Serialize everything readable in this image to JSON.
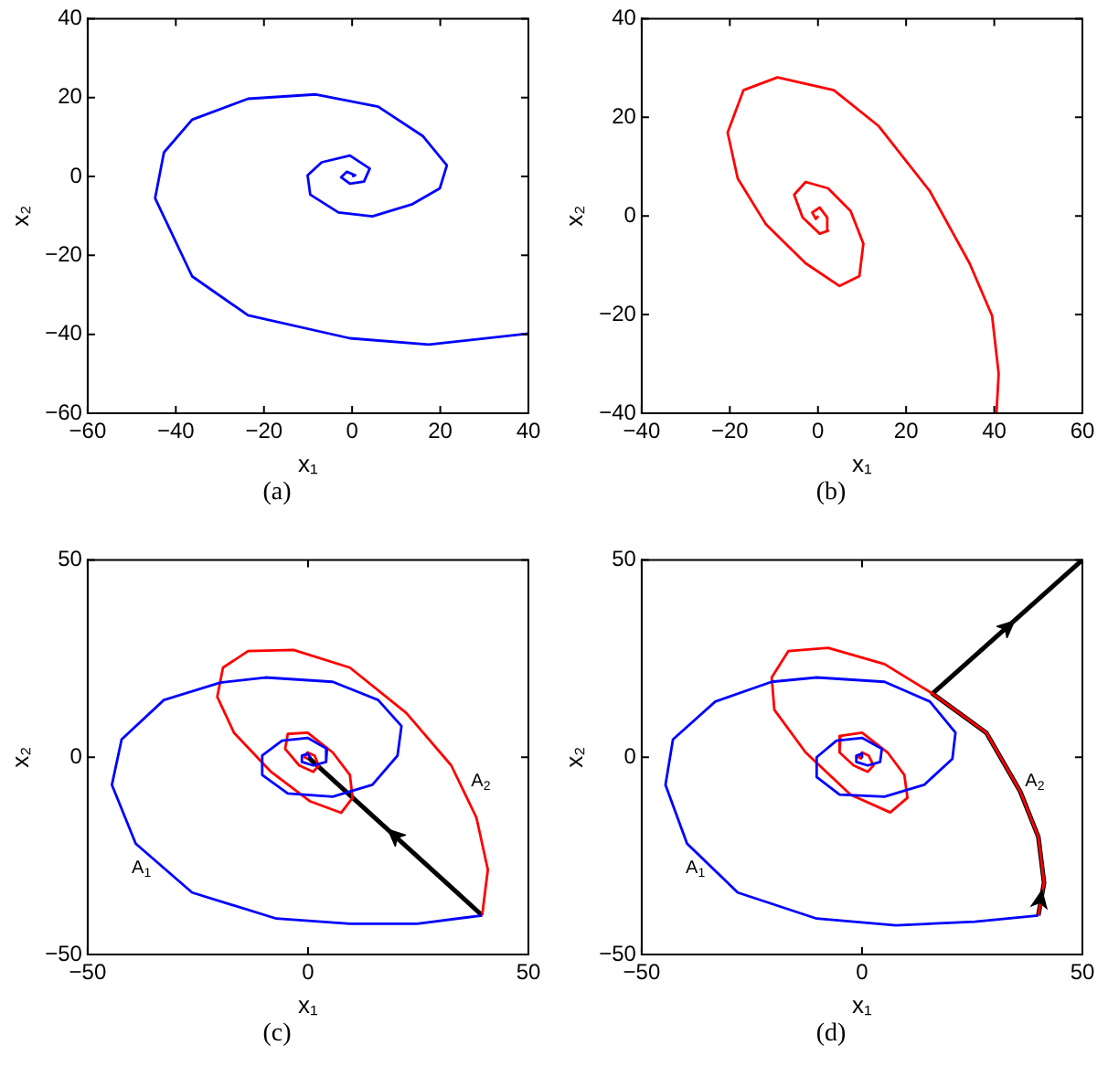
{
  "chart_data": [
    {
      "type": "line",
      "xlabel": "x₁",
      "ylabel": "x₂",
      "xlim": [
        -60,
        40
      ],
      "ylim": [
        -60,
        40
      ],
      "xticks": [
        -60,
        -40,
        -20,
        0,
        20,
        40
      ],
      "yticks": [
        -60,
        -40,
        -20,
        0,
        20,
        40
      ],
      "grid": false,
      "legend": false,
      "marker": "none",
      "annotations": [
        "(a)"
      ],
      "series": [
        {
          "color": "#0000ff",
          "x": [
            40,
            17.4,
            -0.5,
            -23.6,
            -36.3,
            -44.7,
            -42.7,
            -36.3,
            -23.6,
            -8.2,
            5.9,
            16.1,
            21.5,
            19.9,
            13.5,
            4.6,
            -3.1,
            -9.5,
            -10.1,
            -6.9,
            -0.5,
            4.0,
            2.7,
            -0.5,
            -2.5,
            -1.2,
            0.7,
            0
          ],
          "values": [
            -39.8,
            -42.6,
            -41,
            -35.2,
            -25.3,
            -5.5,
            6.1,
            14.4,
            19.7,
            20.8,
            17.7,
            10.2,
            2.8,
            -3.0,
            -7.1,
            -10.1,
            -9.1,
            -4.6,
            0.3,
            3.6,
            5.3,
            2.0,
            -1.3,
            -1.8,
            -0.2,
            1.2,
            0.3,
            0
          ]
        }
      ]
    },
    {
      "type": "line",
      "xlabel": "x₁",
      "ylabel": "x₂",
      "xlim": [
        -40,
        60
      ],
      "ylim": [
        -40,
        40
      ],
      "xticks": [
        -40,
        -20,
        0,
        20,
        40,
        60
      ],
      "yticks": [
        -40,
        -20,
        0,
        20,
        40
      ],
      "grid": false,
      "legend": false,
      "marker": "none",
      "annotations": [
        "(b)"
      ],
      "series": [
        {
          "color": "#ff0000",
          "x": [
            40.5,
            41,
            39.5,
            34.4,
            25.4,
            13.8,
            3.6,
            -9.2,
            -16.9,
            -20.5,
            -18.2,
            -11.8,
            -2.8,
            4.9,
            9.4,
            10.3,
            7.4,
            2.3,
            -2.8,
            -5.4,
            -3.5,
            0.4,
            2.3,
            2.1,
            0.4,
            -1.3,
            -0.5,
            0.1
          ],
          "values": [
            -40,
            -32,
            -20.2,
            -9.6,
            5.0,
            18.2,
            25.5,
            28.1,
            25.5,
            16.9,
            7.6,
            -1.7,
            -9.6,
            -14.2,
            -12.2,
            -5.6,
            1.0,
            5.6,
            6.9,
            4.3,
            -0.3,
            -3.6,
            -3.0,
            -0.3,
            1.7,
            0.7,
            -0.6,
            0
          ]
        }
      ]
    },
    {
      "type": "line",
      "xlabel": "x₁",
      "ylabel": "x₂",
      "xlim": [
        -50,
        50
      ],
      "ylim": [
        -50,
        50
      ],
      "xticks": [
        -50,
        0,
        50
      ],
      "yticks": [
        -50,
        0,
        50
      ],
      "grid": false,
      "legend": false,
      "marker": "none",
      "annotations": [
        "(c)",
        "A$_{1}$",
        "A$_{2}$"
      ],
      "series": [
        {
          "color": "#0000ff",
          "x": [
            39.5,
            24.8,
            9.5,
            -7.2,
            -26.3,
            -39.1,
            -44.5,
            -42.3,
            -32.7,
            -19.9,
            -9.7,
            5.6,
            15.9,
            21.2,
            20.3,
            14.6,
            5.6,
            -4.6,
            -10.4,
            -10.4,
            -5.9,
            -0.1,
            4.3,
            4.1,
            1.2,
            -1.4,
            -1.4,
            -0.1,
            0.5,
            0
          ],
          "values": [
            -40.1,
            -42.2,
            -42.2,
            -40.9,
            -34.3,
            -21.9,
            -7.0,
            4.5,
            14.5,
            18.9,
            20.2,
            19.1,
            14.5,
            7.9,
            0.4,
            -7.0,
            -10.0,
            -9.2,
            -4.5,
            0.4,
            4.2,
            4.9,
            2.1,
            -1.2,
            -2.1,
            -1.2,
            0.4,
            0.9,
            0,
            0
          ]
        },
        {
          "color": "#ff0000",
          "x": [
            39.5,
            40.8,
            38.2,
            32.5,
            22.3,
            9.5,
            -3.3,
            -13.6,
            -19.3,
            -20.6,
            -16.8,
            -8.4,
            0.5,
            7.5,
            10.1,
            9.5,
            5.6,
            -0.1,
            -4.6,
            -5.2,
            -2.0,
            1.2,
            2.4,
            1.5,
            -0.1,
            -0.8,
            0
          ],
          "values": [
            -40.1,
            -28.5,
            -15.3,
            -2.1,
            11.2,
            22.7,
            27.2,
            26.9,
            22.7,
            15.3,
            6.2,
            -3.7,
            -11.2,
            -14.1,
            -10.3,
            -4.5,
            1.2,
            6.2,
            5.9,
            2.1,
            -2.1,
            -3.7,
            -2.1,
            0.4,
            1.2,
            0,
            -0.4
          ]
        },
        {
          "color": "#000000",
          "x": [
            39.5,
            0
          ],
          "values": [
            -40.1,
            0
          ]
        }
      ]
    },
    {
      "type": "line",
      "xlabel": "x₁",
      "ylabel": "x₂",
      "xlim": [
        -50,
        50
      ],
      "ylim": [
        -50,
        50
      ],
      "xticks": [
        -50,
        0,
        50
      ],
      "yticks": [
        -50,
        0,
        50
      ],
      "grid": false,
      "legend": false,
      "marker": "none",
      "annotations": [
        "(d)",
        "A$_{1}$",
        "A$_{2}$"
      ],
      "series": [
        {
          "color": "#0000ff",
          "x": [
            40,
            25.6,
            7.7,
            -10.3,
            -28.2,
            -39.7,
            -44.6,
            -42.9,
            -33.3,
            -20.5,
            -10.3,
            5.1,
            15.4,
            21.2,
            20.5,
            14.1,
            5.1,
            -5.1,
            -10.3,
            -10.3,
            -5.8,
            0,
            4.5,
            4.1,
            1.3,
            -1.3,
            -1.3,
            0,
            0
          ],
          "values": [
            -40.1,
            -41.7,
            -42.6,
            -40.9,
            -34.3,
            -21.9,
            -7.0,
            4.5,
            14.1,
            19.1,
            20.2,
            19.1,
            14.1,
            6.2,
            -0.4,
            -7.0,
            -10.0,
            -9.5,
            -5.0,
            0,
            4.2,
            4.9,
            2.1,
            -1.2,
            -2.1,
            -1.2,
            0.4,
            0.9,
            0
          ]
        },
        {
          "color": "#ff0000",
          "x": [
            40,
            41.3,
            40,
            35.9,
            28.2,
            16.0,
            5.1,
            -7.7,
            -16.7,
            -20.5,
            -19.9,
            -12.8,
            -2.6,
            6.4,
            10.3,
            9.6,
            5.8,
            0,
            -4.9,
            -5.1,
            -1.9,
            1.3,
            2.6,
            1.5,
            0,
            -0.8,
            0
          ],
          "values": [
            -40.1,
            -31.8,
            -20.2,
            -8.7,
            6.2,
            16.1,
            23.6,
            27.7,
            26.9,
            20.2,
            12.0,
            1.2,
            -9.5,
            -14.0,
            -10.3,
            -4.5,
            1.2,
            6.2,
            5.4,
            1.2,
            -2.1,
            -3.7,
            -2.1,
            0.4,
            1.2,
            0,
            -0.4
          ]
        },
        {
          "color": "#000000",
          "x": [
            40,
            41.3,
            40,
            35.9,
            28.2,
            16.0,
            50
          ],
          "values": [
            -40.1,
            -31.8,
            -20.2,
            -8.7,
            6.2,
            16.1,
            50
          ]
        }
      ]
    }
  ]
}
